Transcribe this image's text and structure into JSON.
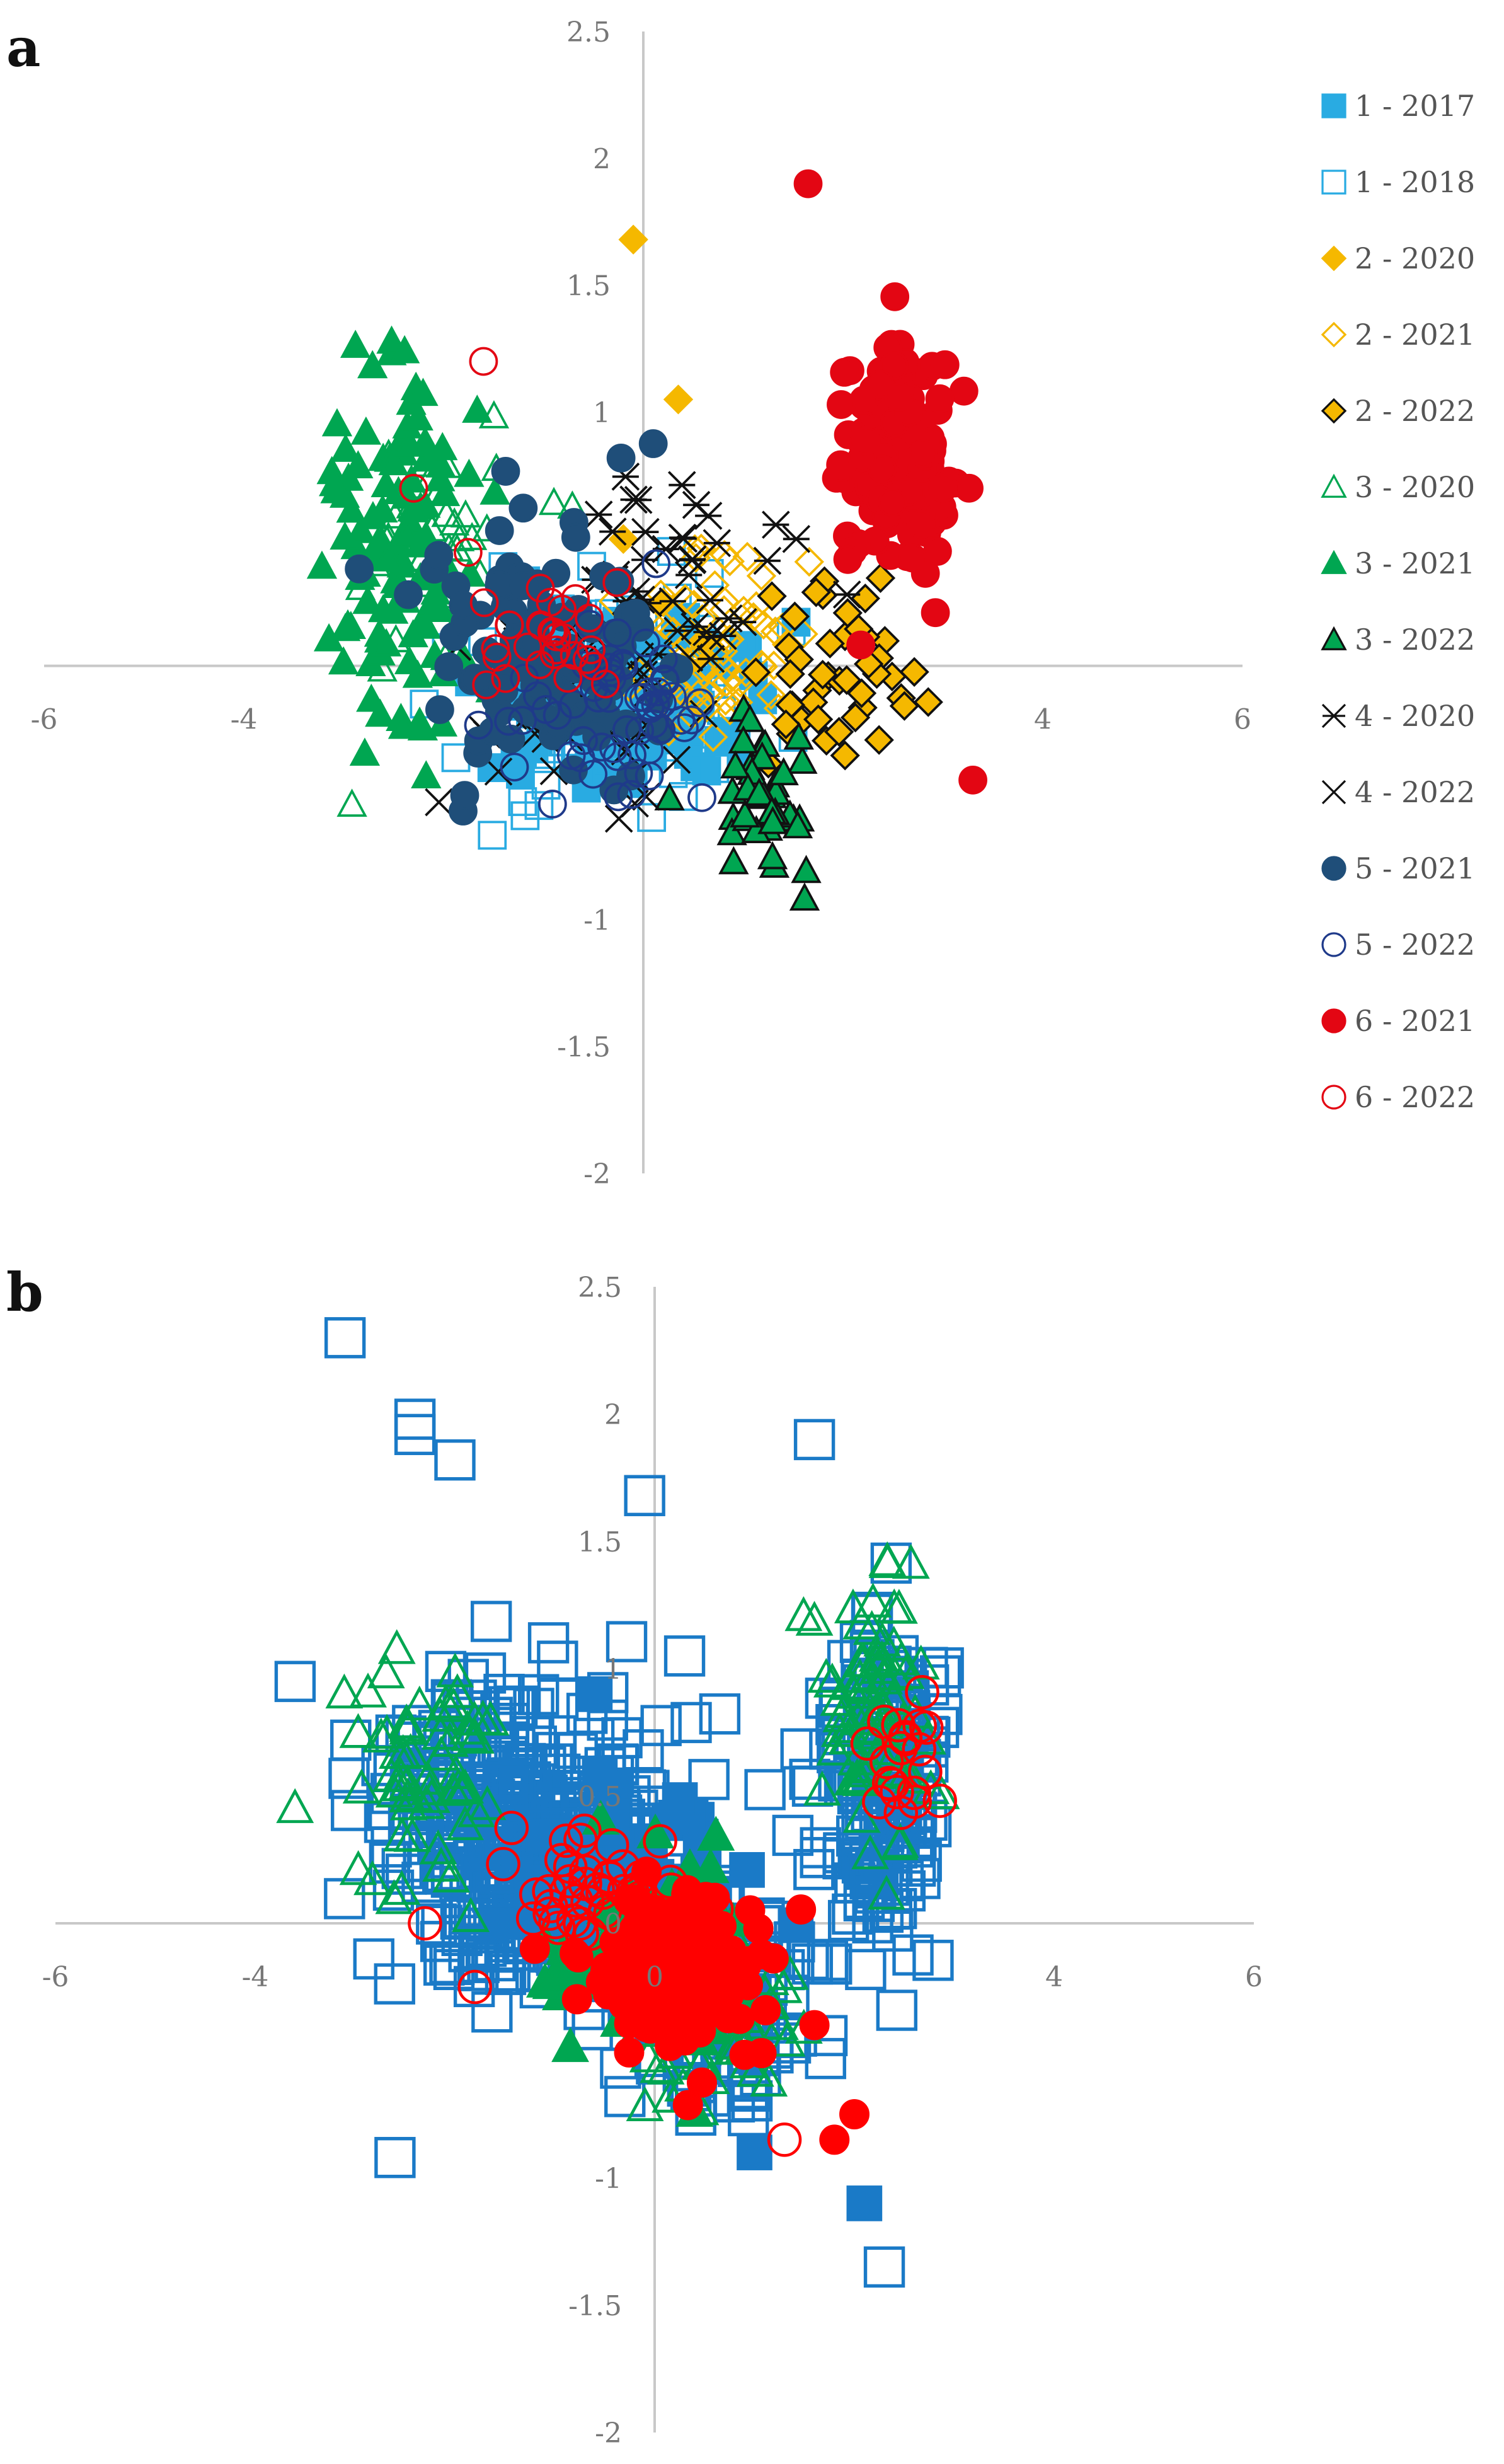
{
  "panels": [
    {
      "id": "a",
      "label": "a"
    },
    {
      "id": "b",
      "label": "b"
    }
  ],
  "chart_data": [
    {
      "panel": "a",
      "type": "scatter",
      "title": "",
      "xlabel": "",
      "ylabel": "",
      "xlim": [
        -6,
        6
      ],
      "ylim": [
        -2,
        2.5
      ],
      "x_ticks": [
        "-6",
        "-4",
        "4",
        "6"
      ],
      "x_tick_values": [
        -6,
        -4,
        4,
        6
      ],
      "y_ticks": [
        "2.5",
        "2",
        "1.5",
        "1",
        "-1",
        "-1.5",
        "-2"
      ],
      "y_tick_values": [
        2.5,
        2,
        1.5,
        1,
        -1,
        -1.5,
        -2
      ],
      "grid": false,
      "legend_position": "right",
      "series": [
        {
          "name": "1 - 2017",
          "color": "#29abe2",
          "marker": "square",
          "filled": true,
          "cluster": {
            "cx": -0.2,
            "cy": -0.15,
            "sx": 1.1,
            "sy": 0.35,
            "n": 120
          }
        },
        {
          "name": "1 - 2018",
          "color": "#29abe2",
          "marker": "square",
          "filled": false,
          "cluster": {
            "cx": -0.3,
            "cy": -0.1,
            "sx": 1.3,
            "sy": 0.4,
            "n": 110
          }
        },
        {
          "name": "2 - 2020",
          "color": "#f5b800",
          "marker": "diamond",
          "filled": true,
          "points": [
            [
              -0.1,
              1.68
            ],
            [
              0.35,
              1.05
            ],
            [
              -0.2,
              0.5
            ],
            [
              0.2,
              0.25
            ],
            [
              0.6,
              0.1
            ]
          ]
        },
        {
          "name": "2 - 2021",
          "color": "#f5b800",
          "marker": "diamond",
          "filled": false,
          "cluster": {
            "cx": 0.8,
            "cy": 0.0,
            "sx": 0.9,
            "sy": 0.35,
            "n": 70
          }
        },
        {
          "name": "2 - 2022",
          "color": "#f5b800",
          "marker": "diamond",
          "filled": true,
          "edge": "#111111",
          "cluster": {
            "cx": 1.9,
            "cy": -0.1,
            "sx": 0.8,
            "sy": 0.35,
            "n": 45
          }
        },
        {
          "name": "3 - 2020",
          "color": "#00a651",
          "marker": "triangle",
          "filled": false,
          "cluster": {
            "cx": -2.0,
            "cy": 0.45,
            "sx": 0.9,
            "sy": 0.45,
            "n": 45
          }
        },
        {
          "name": "3 - 2021",
          "color": "#00a651",
          "marker": "triangle",
          "filled": true,
          "cluster": {
            "cx": -2.4,
            "cy": 0.5,
            "sx": 0.7,
            "sy": 0.65,
            "n": 110
          }
        },
        {
          "name": "3 - 2022",
          "color": "#00a651",
          "marker": "triangle",
          "filled": true,
          "edge": "#111111",
          "cluster": {
            "cx": 1.2,
            "cy": -0.55,
            "sx": 0.5,
            "sy": 0.3,
            "n": 40
          }
        },
        {
          "name": "4 - 2020",
          "color": "#111111",
          "marker": "asterisk",
          "filled": false,
          "cluster": {
            "cx": 0.4,
            "cy": 0.35,
            "sx": 0.9,
            "sy": 0.4,
            "n": 40
          }
        },
        {
          "name": "4 - 2022",
          "color": "#111111",
          "marker": "x",
          "filled": false,
          "cluster": {
            "cx": -0.6,
            "cy": -0.1,
            "sx": 1.0,
            "sy": 0.45,
            "n": 55
          }
        },
        {
          "name": "5 - 2021",
          "color": "#1f4e79",
          "marker": "circle",
          "filled": true,
          "cluster": {
            "cx": -1.0,
            "cy": 0.1,
            "sx": 1.2,
            "sy": 0.45,
            "n": 110
          }
        },
        {
          "name": "5 - 2022",
          "color": "#1f3a8a",
          "marker": "circle",
          "filled": false,
          "cluster": {
            "cx": -0.4,
            "cy": -0.2,
            "sx": 0.9,
            "sy": 0.3,
            "n": 60
          }
        },
        {
          "name": "6 - 2021",
          "color": "#e30613",
          "marker": "circle",
          "filled": true,
          "cluster": {
            "cx": 2.5,
            "cy": 0.8,
            "sx": 0.5,
            "sy": 0.4,
            "n": 150
          },
          "points": [
            [
              1.65,
              1.9
            ],
            [
              3.3,
              -0.45
            ],
            [
              3.0,
              0.7
            ]
          ]
        },
        {
          "name": "6 - 2022",
          "color": "#e30613",
          "marker": "circle",
          "filled": false,
          "cluster": {
            "cx": -0.8,
            "cy": 0.1,
            "sx": 0.7,
            "sy": 0.25,
            "n": 30
          },
          "points": [
            [
              -1.6,
              1.2
            ],
            [
              -2.3,
              0.7
            ]
          ]
        }
      ]
    },
    {
      "panel": "b",
      "type": "scatter",
      "title": "",
      "xlabel": "",
      "ylabel": "",
      "xlim": [
        -6,
        6
      ],
      "ylim": [
        -2,
        2.5
      ],
      "x_ticks": [
        "-6",
        "-4",
        "0",
        "4",
        "6"
      ],
      "x_tick_values": [
        -6,
        -4,
        0,
        4,
        6
      ],
      "y_ticks": [
        "2.5",
        "2",
        "1.5",
        "1",
        "0.5",
        "0",
        "-1",
        "-1.5",
        "-2"
      ],
      "y_tick_values": [
        2.5,
        2,
        1.5,
        1,
        0.5,
        0,
        -1,
        -1.5,
        -2
      ],
      "grid": false,
      "legend_position": "none",
      "series": [
        {
          "color": "#1a7ac7",
          "marker": "square",
          "filled": false,
          "size": 60,
          "clusters": [
            {
              "cx": -1.3,
              "cy": 0.35,
              "sx": 1.3,
              "sy": 0.55,
              "n": 380
            },
            {
              "cx": 2.3,
              "cy": 0.55,
              "sx": 0.55,
              "sy": 0.6,
              "n": 170
            },
            {
              "cx": 0.6,
              "cy": -0.35,
              "sx": 0.8,
              "sy": 0.35,
              "n": 120
            }
          ],
          "points": [
            [
              -3.1,
              2.3
            ],
            [
              -2.4,
              1.98
            ],
            [
              -2.4,
              1.92
            ],
            [
              -2.0,
              1.82
            ],
            [
              1.6,
              1.9
            ],
            [
              -0.1,
              1.68
            ],
            [
              -3.6,
              0.95
            ],
            [
              2.3,
              -1.35
            ],
            [
              -2.6,
              -0.92
            ],
            [
              0.3,
              1.05
            ]
          ]
        },
        {
          "color": "#1a7ac7",
          "marker": "square",
          "filled": true,
          "size": 52,
          "clusters": [
            {
              "cx": -0.2,
              "cy": 0.1,
              "sx": 1.0,
              "sy": 0.4,
              "n": 90
            }
          ],
          "points": [
            [
              2.1,
              -1.1
            ],
            [
              -0.6,
              0.9
            ],
            [
              1.0,
              -0.9
            ]
          ]
        },
        {
          "color": "#00a651",
          "marker": "triangle",
          "filled": false,
          "size": 52,
          "clusters": [
            {
              "cx": -2.3,
              "cy": 0.6,
              "sx": 0.8,
              "sy": 0.5,
              "n": 60
            },
            {
              "cx": 2.2,
              "cy": 0.8,
              "sx": 0.45,
              "sy": 0.45,
              "n": 80
            },
            {
              "cx": 0.8,
              "cy": -0.4,
              "sx": 0.7,
              "sy": 0.3,
              "n": 50
            }
          ]
        },
        {
          "color": "#00a651",
          "marker": "triangle",
          "filled": true,
          "size": 52,
          "clusters": [
            {
              "cx": -0.1,
              "cy": -0.1,
              "sx": 0.8,
              "sy": 0.4,
              "n": 60
            }
          ]
        },
        {
          "color": "#ff0000",
          "marker": "circle",
          "filled": true,
          "size": 44,
          "clusters": [
            {
              "cx": 0.15,
              "cy": -0.2,
              "sx": 0.75,
              "sy": 0.3,
              "n": 170
            }
          ],
          "points": [
            [
              1.8,
              -0.85
            ],
            [
              2.0,
              -0.75
            ],
            [
              1.6,
              -0.4
            ],
            [
              -1.2,
              -0.1
            ]
          ]
        },
        {
          "color": "#ff0000",
          "marker": "circle",
          "filled": false,
          "size": 50,
          "clusters": [
            {
              "cx": -0.6,
              "cy": 0.1,
              "sx": 0.8,
              "sy": 0.25,
              "n": 45
            },
            {
              "cx": 2.5,
              "cy": 0.7,
              "sx": 0.35,
              "sy": 0.3,
              "n": 20
            }
          ],
          "points": [
            [
              -2.3,
              0.0
            ],
            [
              -1.8,
              -0.25
            ],
            [
              1.3,
              -0.85
            ]
          ]
        }
      ]
    }
  ]
}
